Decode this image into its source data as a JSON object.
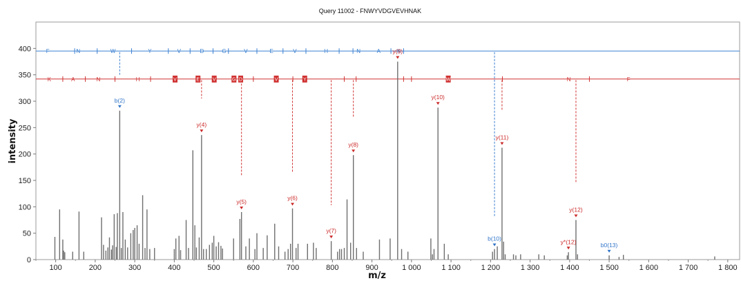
{
  "chart_data": {
    "type": "bar",
    "title": "Query 11002 - FNWYVDGVEVHNAK",
    "xlabel": "m/z",
    "ylabel": "intensity",
    "xlim": [
      50,
      1830
    ],
    "ylim": [
      0,
      450
    ],
    "xticks": [
      100,
      200,
      300,
      400,
      500,
      600,
      700,
      800,
      900,
      1000,
      1100,
      1200,
      1300,
      1400,
      1500,
      1600,
      1700,
      1800
    ],
    "xtick_labels": [
      "100",
      "200",
      "300",
      "400",
      "500",
      "600",
      "700",
      "800",
      "900",
      "1 000",
      "1 100",
      "1 200",
      "1 300",
      "1 400",
      "1 500",
      "1 600",
      "1 700",
      "1 800"
    ],
    "yticks": [
      0,
      50,
      100,
      150,
      200,
      250,
      300,
      350,
      400
    ],
    "peaks": [
      [
        98,
        43
      ],
      [
        110,
        95
      ],
      [
        118,
        38
      ],
      [
        120,
        17
      ],
      [
        123,
        14
      ],
      [
        143,
        15
      ],
      [
        159,
        91
      ],
      [
        171,
        15
      ],
      [
        216,
        80
      ],
      [
        221,
        28
      ],
      [
        227,
        17
      ],
      [
        232,
        23
      ],
      [
        236,
        42
      ],
      [
        241,
        19
      ],
      [
        244,
        27
      ],
      [
        248,
        86
      ],
      [
        253,
        24
      ],
      [
        256,
        88
      ],
      [
        262,
        282
      ],
      [
        266,
        22
      ],
      [
        270,
        90
      ],
      [
        276,
        38
      ],
      [
        282,
        23
      ],
      [
        290,
        50
      ],
      [
        296,
        56
      ],
      [
        300,
        60
      ],
      [
        306,
        65
      ],
      [
        311,
        30
      ],
      [
        320,
        122
      ],
      [
        326,
        22
      ],
      [
        331,
        95
      ],
      [
        338,
        20
      ],
      [
        350,
        22
      ],
      [
        400,
        20
      ],
      [
        404,
        40
      ],
      [
        412,
        45
      ],
      [
        416,
        18
      ],
      [
        430,
        75
      ],
      [
        436,
        22
      ],
      [
        447,
        207
      ],
      [
        452,
        65
      ],
      [
        456,
        23
      ],
      [
        463,
        42
      ],
      [
        469,
        236
      ],
      [
        474,
        20
      ],
      [
        481,
        20
      ],
      [
        489,
        28
      ],
      [
        496,
        32
      ],
      [
        500,
        45
      ],
      [
        506,
        25
      ],
      [
        512,
        33
      ],
      [
        518,
        26
      ],
      [
        522,
        21
      ],
      [
        550,
        40
      ],
      [
        566,
        77
      ],
      [
        570,
        90
      ],
      [
        581,
        25
      ],
      [
        590,
        40
      ],
      [
        604,
        20
      ],
      [
        609,
        50
      ],
      [
        625,
        22
      ],
      [
        635,
        46
      ],
      [
        654,
        68
      ],
      [
        664,
        25
      ],
      [
        680,
        15
      ],
      [
        688,
        20
      ],
      [
        694,
        30
      ],
      [
        699,
        97
      ],
      [
        708,
        22
      ],
      [
        713,
        30
      ],
      [
        737,
        30
      ],
      [
        752,
        32
      ],
      [
        759,
        22
      ],
      [
        797,
        35
      ],
      [
        813,
        15
      ],
      [
        818,
        20
      ],
      [
        823,
        20
      ],
      [
        830,
        22
      ],
      [
        837,
        114
      ],
      [
        846,
        32
      ],
      [
        853,
        198
      ],
      [
        861,
        22
      ],
      [
        878,
        15
      ],
      [
        919,
        38
      ],
      [
        946,
        40
      ],
      [
        965,
        375
      ],
      [
        975,
        20
      ],
      [
        991,
        15
      ],
      [
        1049,
        40
      ],
      [
        1053,
        10
      ],
      [
        1057,
        20
      ],
      [
        1067,
        288
      ],
      [
        1083,
        30
      ],
      [
        1093,
        10
      ],
      [
        1205,
        15
      ],
      [
        1210,
        20
      ],
      [
        1217,
        25
      ],
      [
        1229,
        212
      ],
      [
        1233,
        34
      ],
      [
        1237,
        10
      ],
      [
        1258,
        10
      ],
      [
        1264,
        8
      ],
      [
        1276,
        10
      ],
      [
        1322,
        10
      ],
      [
        1336,
        8
      ],
      [
        1394,
        8
      ],
      [
        1397,
        14
      ],
      [
        1416,
        75
      ],
      [
        1420,
        10
      ],
      [
        1500,
        8
      ],
      [
        1525,
        5
      ],
      [
        1536,
        9
      ],
      [
        1767,
        6
      ]
    ],
    "annotations": [
      {
        "label": "b(2)",
        "x": 262,
        "y": 282,
        "color": "blue"
      },
      {
        "label": "y(4)",
        "x": 469,
        "y": 236,
        "color": "red"
      },
      {
        "label": "y(5)",
        "x": 570,
        "y": 90,
        "color": "red"
      },
      {
        "label": "y(6)",
        "x": 699,
        "y": 97,
        "color": "red"
      },
      {
        "label": "y(7)",
        "x": 797,
        "y": 35,
        "color": "red"
      },
      {
        "label": "y(8)",
        "x": 853,
        "y": 198,
        "color": "red"
      },
      {
        "label": "y(9)",
        "x": 965,
        "y": 375,
        "color": "red"
      },
      {
        "label": "y(10)",
        "x": 1067,
        "y": 288,
        "color": "red"
      },
      {
        "label": "b(10)",
        "x": 1210,
        "y": 20,
        "color": "blue"
      },
      {
        "label": "y(11)",
        "x": 1229,
        "y": 212,
        "color": "red"
      },
      {
        "label": "y*(12)",
        "x": 1397,
        "y": 14,
        "color": "red"
      },
      {
        "label": "y(12)",
        "x": 1416,
        "y": 75,
        "color": "red"
      },
      {
        "label": "b0(13)",
        "x": 1500,
        "y": 8,
        "color": "blue"
      }
    ],
    "b_ladder": {
      "color": "#3a7fd0",
      "y_level": 395,
      "residues": [
        "F",
        "N",
        "W",
        "Y",
        "V",
        "D",
        "G",
        "V",
        "E",
        "V",
        "H",
        "N",
        "A",
        "K"
      ],
      "residue_mz": [
        80,
        157,
        245,
        338,
        412,
        470,
        526,
        581,
        646,
        705,
        784,
        866,
        917,
        968
      ],
      "tick_mz": [
        148,
        205,
        292,
        385,
        440,
        498,
        537,
        609,
        675,
        733,
        817,
        852,
        948,
        980
      ],
      "drops": [
        [
          262,
          393,
          350
        ],
        [
          1210,
          393,
          80
        ]
      ]
    },
    "y_ladder": {
      "color": "#d03030",
      "y_level": 342,
      "residues": [
        "K",
        "A",
        "N",
        "H",
        "V",
        "E",
        "V",
        "G",
        "D",
        "V",
        "Y",
        "W",
        "N",
        "F"
      ],
      "residue_mz": [
        84,
        144,
        208,
        308,
        402,
        460,
        501,
        551,
        568,
        658,
        730,
        1093,
        1398,
        1549
      ],
      "boxed": [
        false,
        false,
        false,
        false,
        true,
        true,
        true,
        true,
        true,
        true,
        true,
        true,
        false,
        false
      ],
      "tick_mz": [
        118,
        175,
        250,
        340,
        500,
        565,
        600,
        700,
        830,
        860,
        980,
        1000,
        1230,
        1450
      ],
      "drops": [
        [
          469,
          340,
          305
        ],
        [
          570,
          340,
          158
        ],
        [
          699,
          340,
          165
        ],
        [
          797,
          340,
          103
        ],
        [
          853,
          340,
          270
        ],
        [
          1229,
          340,
          283
        ],
        [
          1416,
          340,
          145
        ]
      ]
    }
  }
}
